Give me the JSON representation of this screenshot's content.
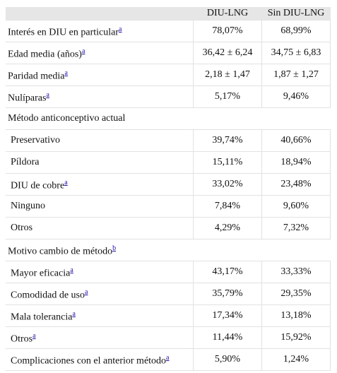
{
  "table": {
    "header": [
      "DIU-LNG",
      "Sin DIU-LNG"
    ],
    "rows": [
      {
        "label": "Interés en DIU en particular",
        "note": "a",
        "values": [
          "78,07%",
          "68,99%"
        ]
      },
      {
        "label": "Edad media (años)",
        "note": "a",
        "values": [
          "36,42 ± 6,24",
          "34,75 ± 6,83"
        ]
      },
      {
        "label": "Paridad media",
        "note": "a",
        "values": [
          "2,18 ± 1,47",
          "1,87 ± 1,27"
        ]
      },
      {
        "label": "Nulíparas",
        "note": "a",
        "values": [
          "5,17%",
          "9,46%"
        ]
      },
      {
        "label": "Método anticonceptivo actual"
      },
      {
        "label": "Preservativo",
        "indent": true,
        "values": [
          "39,74%",
          "40,66%"
        ]
      },
      {
        "label": "Píldora",
        "indent": true,
        "values": [
          "15,11%",
          "18,94%"
        ]
      },
      {
        "label": "DIU de cobre",
        "note": "a",
        "indent": true,
        "values": [
          "33,02%",
          "23,48%"
        ]
      },
      {
        "label": "Ninguno",
        "indent": true,
        "values": [
          "7,84%",
          "9,60%"
        ]
      },
      {
        "label": "Otros",
        "indent": true,
        "values": [
          "4,29%",
          "7,32%"
        ]
      },
      {
        "label": "Motivo cambio de método",
        "note": "b"
      },
      {
        "label": "Mayor eficacia",
        "note": "a",
        "indent": true,
        "values": [
          "43,17%",
          "33,33%"
        ]
      },
      {
        "label": "Comodidad de uso",
        "note": "a",
        "indent": true,
        "values": [
          "35,79%",
          "29,35%"
        ]
      },
      {
        "label": "Mala tolerancia",
        "note": "a",
        "indent": true,
        "values": [
          "17,34%",
          "13,18%"
        ]
      },
      {
        "label": "Otros",
        "note": "a",
        "indent": true,
        "values": [
          "11,44%",
          "15,92%"
        ]
      },
      {
        "label": "Complicaciones con el anterior método",
        "note": "a",
        "indent": true,
        "values": [
          "5,90%",
          "1,24%"
        ]
      }
    ]
  }
}
